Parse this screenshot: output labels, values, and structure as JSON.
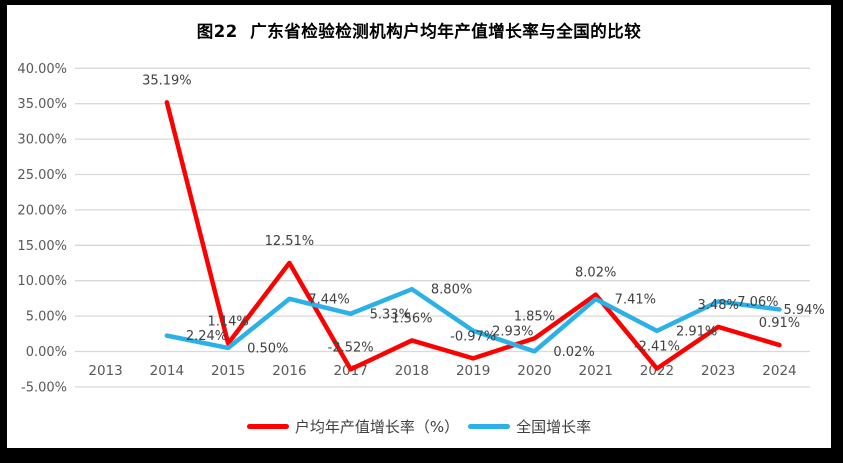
{
  "frame": {
    "border_color": "#000000",
    "surface_color": "#ffffff"
  },
  "colors": {
    "gridline": "#d9d9d9",
    "axis_text": "#595959",
    "data_label_text": "#404040",
    "title_text": "#000000",
    "series_red": "#fe0000",
    "series_blue": "#2bb0e8"
  },
  "chart_data": {
    "type": "line",
    "title": "图22  广东省检验检测机构户均年产值增长率与全国的比较",
    "categories": [
      "2013",
      "2014",
      "2015",
      "2016",
      "2017",
      "2018",
      "2019",
      "2020",
      "2021",
      "2022",
      "2023",
      "2024"
    ],
    "series": [
      {
        "key": "guangdong",
        "name": "户均年产值增长率（%）",
        "color": "#fe0000",
        "label_position": "above",
        "values": [
          null,
          35.19,
          1.14,
          12.51,
          -2.52,
          1.56,
          -0.97,
          1.85,
          8.02,
          -2.41,
          3.48,
          0.91
        ],
        "point_labels": [
          "",
          "35.19%",
          "1.14%",
          "12.51%",
          "-2.52%",
          "1.56%",
          "-0.97%",
          "1.85%",
          "8.02%",
          "-2.41%",
          "3.48%",
          "0.91%"
        ]
      },
      {
        "key": "national",
        "name": "全国增长率",
        "color": "#2bb0e8",
        "label_position": "right",
        "values": [
          null,
          2.24,
          0.5,
          7.44,
          5.33,
          8.8,
          2.93,
          0.02,
          7.41,
          2.91,
          7.06,
          5.94
        ],
        "point_labels": [
          "",
          "2.24%",
          "0.50%",
          "7.44%",
          "5.33%",
          "8.80%",
          "2.93%",
          "0.02%",
          "7.41%",
          "2.91%",
          "7.06%",
          "5.94%"
        ]
      }
    ],
    "y_axis": {
      "min": -5,
      "max": 40,
      "step": 5,
      "tick_labels": [
        "40.00%",
        "35.00%",
        "30.00%",
        "25.00%",
        "20.00%",
        "15.00%",
        "10.00%",
        "5.00%",
        "0.00%",
        "-5.00%"
      ]
    },
    "ylim": [
      -5,
      40
    ],
    "grid": true,
    "legend_position": "bottom"
  }
}
